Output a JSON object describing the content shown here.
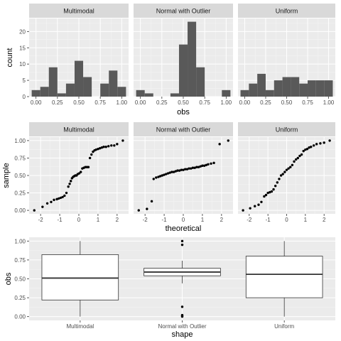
{
  "chart_data": [
    {
      "type": "histogram",
      "facets": [
        "Multimodal",
        "Normal with Outlier",
        "Uniform"
      ],
      "xlabel": "obs",
      "ylabel": "count",
      "xlim": [
        -0.08,
        1.08
      ],
      "ylim": [
        0,
        24
      ],
      "x_ticks": [
        0.0,
        0.25,
        0.5,
        0.75,
        1.0
      ],
      "x_tick_labels": [
        "0.00",
        "0.25",
        "0.50",
        "0.75",
        "1.00"
      ],
      "y_ticks": [
        0,
        5,
        10,
        15,
        20
      ],
      "y_tick_labels": [
        "0",
        "5",
        "10",
        "15",
        "20"
      ],
      "bin_edges": [
        -0.05,
        0.05,
        0.15,
        0.25,
        0.35,
        0.45,
        0.55,
        0.65,
        0.75,
        0.85,
        0.95,
        1.05
      ],
      "series": [
        {
          "facet": "Multimodal",
          "counts": [
            2,
            3,
            9,
            1,
            4,
            11,
            6,
            0,
            4,
            8,
            3
          ]
        },
        {
          "facet": "Normal with Outlier",
          "counts": [
            2,
            1,
            0,
            0,
            1,
            16,
            23,
            9,
            0,
            0,
            2
          ]
        },
        {
          "facet": "Uniform",
          "counts": [
            2,
            4,
            7,
            2,
            5,
            6,
            6,
            4,
            5,
            5,
            5
          ]
        }
      ]
    },
    {
      "type": "scatter",
      "facets": [
        "Multimodal",
        "Normal with Outlier",
        "Uniform"
      ],
      "xlabel": "theoretical",
      "ylabel": "sample",
      "xlim": [
        -2.6,
        2.6
      ],
      "ylim": [
        -0.05,
        1.05
      ],
      "x_ticks": [
        -2,
        -1,
        0,
        1,
        2
      ],
      "x_tick_labels": [
        "-2",
        "-1",
        "0",
        "1",
        "2"
      ],
      "y_ticks": [
        0.0,
        0.25,
        0.5,
        0.75,
        1.0
      ],
      "y_tick_labels": [
        "0.00",
        "0.25",
        "0.50",
        "0.75",
        "1.00"
      ],
      "theoretical_quantiles": [
        -2.33,
        -1.93,
        -1.69,
        -1.51,
        -1.37,
        -1.25,
        -1.14,
        -1.04,
        -0.95,
        -0.86,
        -0.77,
        -0.69,
        -0.61,
        -0.54,
        -0.46,
        -0.39,
        -0.32,
        -0.25,
        -0.18,
        -0.12,
        -0.05,
        0.02,
        0.09,
        0.16,
        0.22,
        0.29,
        0.36,
        0.43,
        0.5,
        0.57,
        0.64,
        0.72,
        0.8,
        0.88,
        0.96,
        1.05,
        1.14,
        1.24,
        1.35,
        1.48,
        1.62,
        1.79,
        2.01,
        2.33
      ],
      "series": [
        {
          "facet": "Multimodal",
          "x": [
            -2.33,
            -1.9,
            -1.65,
            -1.45,
            -1.3,
            -1.15,
            -1.05,
            -0.95,
            -0.85,
            -0.75,
            -0.65,
            -0.55,
            -0.48,
            -0.42,
            -0.36,
            -0.3,
            -0.24,
            -0.18,
            -0.12,
            -0.06,
            0.02,
            0.1,
            0.18,
            0.26,
            0.34,
            0.42,
            0.5,
            0.58,
            0.66,
            0.74,
            0.82,
            0.9,
            1.0,
            1.1,
            1.2,
            1.3,
            1.42,
            1.55,
            1.7,
            1.85,
            2.0,
            2.3
          ],
          "y": [
            0.0,
            0.05,
            0.1,
            0.12,
            0.15,
            0.16,
            0.17,
            0.18,
            0.19,
            0.21,
            0.25,
            0.34,
            0.38,
            0.42,
            0.46,
            0.48,
            0.49,
            0.5,
            0.5,
            0.52,
            0.53,
            0.55,
            0.6,
            0.61,
            0.62,
            0.62,
            0.62,
            0.75,
            0.8,
            0.84,
            0.86,
            0.87,
            0.88,
            0.89,
            0.9,
            0.91,
            0.91,
            0.92,
            0.93,
            0.93,
            0.95,
            1.0
          ]
        },
        {
          "facet": "Normal with Outlier",
          "x": [
            -2.33,
            -1.9,
            -1.65,
            -1.55,
            -1.42,
            -1.3,
            -1.2,
            -1.1,
            -1.0,
            -0.9,
            -0.8,
            -0.7,
            -0.6,
            -0.5,
            -0.4,
            -0.3,
            -0.2,
            -0.1,
            0.0,
            0.1,
            0.2,
            0.3,
            0.4,
            0.5,
            0.6,
            0.7,
            0.8,
            0.9,
            1.0,
            1.1,
            1.2,
            1.3,
            1.45,
            1.6,
            1.9,
            2.35
          ],
          "y": [
            0.0,
            0.02,
            0.13,
            0.45,
            0.47,
            0.48,
            0.49,
            0.5,
            0.51,
            0.52,
            0.53,
            0.54,
            0.55,
            0.55,
            0.56,
            0.57,
            0.57,
            0.58,
            0.58,
            0.59,
            0.59,
            0.6,
            0.6,
            0.61,
            0.61,
            0.62,
            0.62,
            0.63,
            0.64,
            0.64,
            0.65,
            0.66,
            0.67,
            0.68,
            0.95,
            1.0
          ]
        },
        {
          "facet": "Uniform",
          "x": [
            -2.33,
            -1.95,
            -1.7,
            -1.5,
            -1.35,
            -1.2,
            -1.1,
            -1.0,
            -0.9,
            -0.8,
            -0.7,
            -0.6,
            -0.5,
            -0.4,
            -0.3,
            -0.2,
            -0.1,
            0.0,
            0.1,
            0.2,
            0.3,
            0.4,
            0.5,
            0.6,
            0.7,
            0.8,
            0.9,
            1.0,
            1.1,
            1.2,
            1.3,
            1.45,
            1.6,
            1.8,
            2.0,
            2.3
          ],
          "y": [
            0.0,
            0.03,
            0.06,
            0.08,
            0.12,
            0.2,
            0.22,
            0.25,
            0.26,
            0.27,
            0.3,
            0.35,
            0.4,
            0.45,
            0.5,
            0.52,
            0.55,
            0.58,
            0.6,
            0.62,
            0.65,
            0.7,
            0.73,
            0.75,
            0.78,
            0.8,
            0.85,
            0.87,
            0.88,
            0.9,
            0.91,
            0.93,
            0.95,
            0.96,
            0.97,
            1.0
          ]
        }
      ]
    },
    {
      "type": "boxplot",
      "xlabel": "shape",
      "ylabel": "obs",
      "categories": [
        "Multimodal",
        "Normal with Outlier",
        "Uniform"
      ],
      "ylim": [
        -0.05,
        1.05
      ],
      "y_ticks": [
        0.0,
        0.25,
        0.5,
        0.75,
        1.0
      ],
      "y_tick_labels": [
        "0.00",
        "0.25",
        "0.50",
        "0.75",
        "1.00"
      ],
      "boxes": [
        {
          "name": "Multimodal",
          "min": 0.0,
          "q1": 0.22,
          "median": 0.51,
          "q3": 0.82,
          "max": 1.0,
          "outliers": []
        },
        {
          "name": "Normal with Outlier",
          "min": 0.44,
          "q1": 0.54,
          "median": 0.59,
          "q3": 0.64,
          "max": 0.74,
          "outliers": [
            0.0,
            0.01,
            0.02,
            0.13,
            0.95,
            1.0
          ]
        },
        {
          "name": "Uniform",
          "min": 0.0,
          "q1": 0.25,
          "median": 0.56,
          "q3": 0.8,
          "max": 1.0,
          "outliers": []
        }
      ]
    }
  ],
  "colors": {
    "panel_bg": "#ebebeb",
    "grid_major": "#ffffff",
    "grid_minor": "#f5f5f5",
    "strip_bg": "#d9d9d9",
    "strip_text": "#1a1a1a",
    "bar_fill": "#595959",
    "point": "#000000",
    "tick_text": "#4d4d4d",
    "title_text": "#000000"
  }
}
